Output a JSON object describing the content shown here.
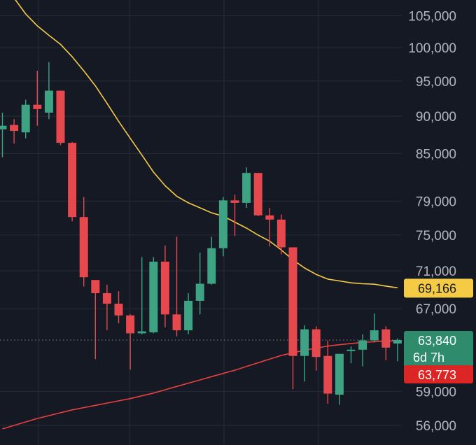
{
  "chart_data": {
    "type": "candlestick",
    "y_scale": "log",
    "ylim": [
      54500,
      107000
    ],
    "grid": true,
    "y_ticks": [
      {
        "value": 105000,
        "label": "105,000"
      },
      {
        "value": 100000,
        "label": "100,000"
      },
      {
        "value": 95000,
        "label": "95,000"
      },
      {
        "value": 90000,
        "label": "90,000"
      },
      {
        "value": 85000,
        "label": "85,000"
      },
      {
        "value": 79000,
        "label": "79,000"
      },
      {
        "value": 75000,
        "label": "75,000"
      },
      {
        "value": 71000,
        "label": "71,000"
      },
      {
        "value": 67000,
        "label": "67,000"
      },
      {
        "value": 59000,
        "label": "59,000"
      },
      {
        "value": 56000,
        "label": "56,000"
      }
    ],
    "candles": [
      {
        "o": 88200,
        "h": 90500,
        "l": 84500,
        "c": 88700
      },
      {
        "o": 88800,
        "h": 89600,
        "l": 86300,
        "c": 88000
      },
      {
        "o": 87800,
        "h": 92300,
        "l": 87000,
        "c": 91600
      },
      {
        "o": 91600,
        "h": 96500,
        "l": 88700,
        "c": 91000
      },
      {
        "o": 90500,
        "h": 97800,
        "l": 89600,
        "c": 93600
      },
      {
        "o": 93600,
        "h": 93600,
        "l": 86100,
        "c": 86400
      },
      {
        "o": 86400,
        "h": 86500,
        "l": 76600,
        "c": 77100
      },
      {
        "o": 77100,
        "h": 79500,
        "l": 69300,
        "c": 70300
      },
      {
        "o": 70000,
        "h": 70000,
        "l": 62000,
        "c": 68600
      },
      {
        "o": 68600,
        "h": 69500,
        "l": 64800,
        "c": 67500
      },
      {
        "o": 67500,
        "h": 68800,
        "l": 65500,
        "c": 66300
      },
      {
        "o": 66300,
        "h": 66400,
        "l": 61000,
        "c": 64500
      },
      {
        "o": 64500,
        "h": 72500,
        "l": 64400,
        "c": 64700
      },
      {
        "o": 64600,
        "h": 72500,
        "l": 64500,
        "c": 72000
      },
      {
        "o": 72000,
        "h": 73800,
        "l": 65100,
        "c": 66400
      },
      {
        "o": 66400,
        "h": 74800,
        "l": 64200,
        "c": 64800
      },
      {
        "o": 64800,
        "h": 68600,
        "l": 64400,
        "c": 67800
      },
      {
        "o": 67800,
        "h": 73000,
        "l": 66400,
        "c": 69600
      },
      {
        "o": 69600,
        "h": 74800,
        "l": 69500,
        "c": 73500
      },
      {
        "o": 73500,
        "h": 79500,
        "l": 72600,
        "c": 79100
      },
      {
        "o": 79100,
        "h": 79800,
        "l": 74900,
        "c": 78800
      },
      {
        "o": 78800,
        "h": 83200,
        "l": 78200,
        "c": 82500
      },
      {
        "o": 82500,
        "h": 82500,
        "l": 77200,
        "c": 77300
      },
      {
        "o": 77300,
        "h": 78200,
        "l": 73700,
        "c": 76800
      },
      {
        "o": 76800,
        "h": 77400,
        "l": 72800,
        "c": 73600
      },
      {
        "o": 73600,
        "h": 73600,
        "l": 59200,
        "c": 62300
      },
      {
        "o": 62300,
        "h": 65300,
        "l": 59900,
        "c": 64900
      },
      {
        "o": 64900,
        "h": 65200,
        "l": 60900,
        "c": 62200
      },
      {
        "o": 62300,
        "h": 63800,
        "l": 57900,
        "c": 58800
      },
      {
        "o": 58700,
        "h": 62500,
        "l": 57800,
        "c": 62500
      },
      {
        "o": 62800,
        "h": 63200,
        "l": 61600,
        "c": 62900
      },
      {
        "o": 62900,
        "h": 64400,
        "l": 61300,
        "c": 63800
      },
      {
        "o": 63800,
        "h": 66500,
        "l": 63600,
        "c": 64800
      },
      {
        "o": 64900,
        "h": 65200,
        "l": 61900,
        "c": 63100
      },
      {
        "o": 63500,
        "h": 64000,
        "l": 61800,
        "c": 63840
      }
    ],
    "moving_averages": [
      {
        "color": "#f5cb46",
        "values": [
          110500,
          107900,
          105300,
          103400,
          101900,
          100500,
          98600,
          96500,
          94300,
          91800,
          89300,
          87000,
          84800,
          82600,
          80900,
          79600,
          78800,
          78200,
          77600,
          77200,
          76500,
          75800,
          75000,
          74300,
          73300,
          72200,
          71300,
          70600,
          70100,
          69900,
          69700,
          69600,
          69550,
          69350,
          69166
        ]
      },
      {
        "color": "#e8403f",
        "values": [
          55700,
          56000,
          56300,
          56600,
          56850,
          57100,
          57350,
          57550,
          57750,
          57950,
          58150,
          58350,
          58600,
          58850,
          59150,
          59450,
          59750,
          60050,
          60350,
          60650,
          60950,
          61300,
          61650,
          62000,
          62350,
          62600,
          62850,
          63050,
          63250,
          63380,
          63500,
          63600,
          63680,
          63730,
          63773
        ]
      }
    ],
    "price_tags": [
      {
        "kind": "ma",
        "label": "69,166",
        "value": 69166,
        "bg": "#f5cb46",
        "fg": "#151924"
      },
      {
        "kind": "price",
        "label": "63,840",
        "sub": "6d 7h",
        "value": 63840,
        "bg": "#2e8c6d",
        "fg": "#ffffff"
      },
      {
        "kind": "ma",
        "label": "63,773",
        "value": 63773,
        "bg": "#dc2626",
        "fg": "#ffffff"
      }
    ],
    "current_price": 63840,
    "colors": {
      "up": "#3ea383",
      "down": "#e5484d",
      "grid": "#262b38",
      "background": "#151924"
    }
  }
}
